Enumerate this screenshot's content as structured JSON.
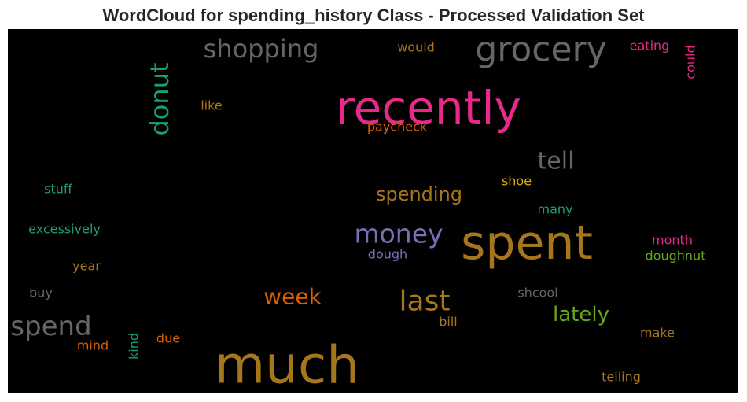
{
  "chart_data": {
    "type": "wordcloud",
    "title": "WordCloud for spending_history Class - Processed Validation Set",
    "background": "#000000",
    "words": [
      {
        "text": "much",
        "color": "#a6761d",
        "weight": 1.0
      },
      {
        "text": "spent",
        "color": "#a6761d",
        "weight": 0.92
      },
      {
        "text": "recently",
        "color": "#e7298a",
        "weight": 0.9
      },
      {
        "text": "grocery",
        "color": "#666666",
        "weight": 0.72
      },
      {
        "text": "last",
        "color": "#a6761d",
        "weight": 0.6
      },
      {
        "text": "spend",
        "color": "#666666",
        "weight": 0.56
      },
      {
        "text": "money",
        "color": "#7570b3",
        "weight": 0.55
      },
      {
        "text": "donut",
        "color": "#1b9e77",
        "weight": 0.53
      },
      {
        "text": "shopping",
        "color": "#666666",
        "weight": 0.53
      },
      {
        "text": "tell",
        "color": "#666666",
        "weight": 0.48
      },
      {
        "text": "week",
        "color": "#d95f02",
        "weight": 0.45
      },
      {
        "text": "lately",
        "color": "#66a61e",
        "weight": 0.42
      },
      {
        "text": "spending",
        "color": "#a6761d",
        "weight": 0.4
      },
      {
        "text": "stuff",
        "color": "#1b9e77",
        "weight": 0.3
      },
      {
        "text": "excessively",
        "color": "#1b9e77",
        "weight": 0.3
      },
      {
        "text": "like",
        "color": "#a6761d",
        "weight": 0.3
      },
      {
        "text": "paycheck",
        "color": "#d95f02",
        "weight": 0.3
      },
      {
        "text": "would",
        "color": "#a6761d",
        "weight": 0.3
      },
      {
        "text": "eating",
        "color": "#e7298a",
        "weight": 0.3
      },
      {
        "text": "could",
        "color": "#e7298a",
        "weight": 0.3
      },
      {
        "text": "shoe",
        "color": "#e6ab02",
        "weight": 0.3
      },
      {
        "text": "many",
        "color": "#1b9e77",
        "weight": 0.3
      },
      {
        "text": "month",
        "color": "#e7298a",
        "weight": 0.3
      },
      {
        "text": "doughnut",
        "color": "#66a61e",
        "weight": 0.3
      },
      {
        "text": "dough",
        "color": "#7570b3",
        "weight": 0.3
      },
      {
        "text": "year",
        "color": "#a6761d",
        "weight": 0.3
      },
      {
        "text": "buy",
        "color": "#666666",
        "weight": 0.3
      },
      {
        "text": "shcool",
        "color": "#666666",
        "weight": 0.3
      },
      {
        "text": "bill",
        "color": "#a6761d",
        "weight": 0.3
      },
      {
        "text": "mind",
        "color": "#d95f02",
        "weight": 0.3
      },
      {
        "text": "kind",
        "color": "#1b9e77",
        "weight": 0.3
      },
      {
        "text": "due",
        "color": "#d95f02",
        "weight": 0.3
      },
      {
        "text": "make",
        "color": "#a6761d",
        "weight": 0.3
      },
      {
        "text": "telling",
        "color": "#a6761d",
        "weight": 0.3
      }
    ]
  }
}
